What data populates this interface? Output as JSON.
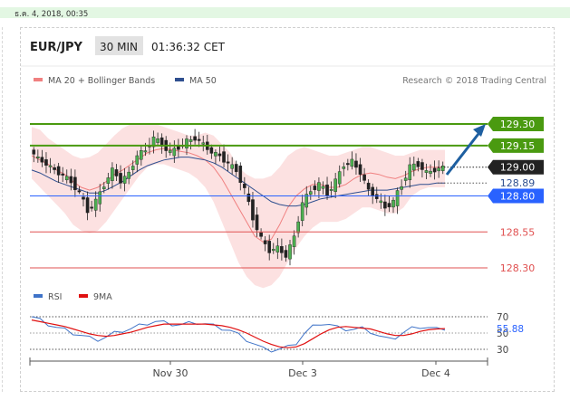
{
  "top_bar": {
    "timestamp": "ธ.ค. 4, 2018, 00:35"
  },
  "header": {
    "symbol": "EUR/JPY",
    "timeframe": "30 MIN",
    "time": "01:36:32 CET"
  },
  "legend": {
    "items": [
      {
        "label": "MA 20 + Bollinger Bands",
        "color": "#f08080"
      },
      {
        "label": "MA 50",
        "color": "#2f4f8f"
      }
    ],
    "credit": "Research © 2018 Trading Central"
  },
  "colors": {
    "resistance": "#4a9a10",
    "support": "#e05050",
    "pivot": "#2962ff",
    "current": "#222222",
    "bollinger_fill": "#f9c9c9",
    "ma50": "#2f4f8f",
    "rsi": "#3f73c8",
    "rsi_ma": "#e01010",
    "arrow": "#1e5fa0"
  },
  "chart_data": [
    {
      "type": "candlestick",
      "title": "EUR/JPY",
      "x_ticks": [
        "Nov 30",
        "Dec 3",
        "Dec 4"
      ],
      "ylim": [
        128.1,
        129.5
      ],
      "levels": [
        {
          "label": "129.30",
          "value": 129.3,
          "kind": "resistance"
        },
        {
          "label": "129.15",
          "value": 129.15,
          "kind": "resistance"
        },
        {
          "label": "129.00",
          "value": 129.0,
          "kind": "current"
        },
        {
          "label": "128.89",
          "value": 128.89,
          "kind": "ma"
        },
        {
          "label": "128.80",
          "value": 128.8,
          "kind": "pivot"
        },
        {
          "label": "128.55",
          "value": 128.55,
          "kind": "support"
        },
        {
          "label": "128.30",
          "value": 128.3,
          "kind": "support"
        }
      ],
      "close_path": [
        129.12,
        129.06,
        129.02,
        128.98,
        128.94,
        128.9,
        128.82,
        128.7,
        128.76,
        128.88,
        128.98,
        128.9,
        128.96,
        129.08,
        129.12,
        129.2,
        129.16,
        129.1,
        129.14,
        129.18,
        129.2,
        129.16,
        129.1,
        129.08,
        129.02,
        128.98,
        128.84,
        128.65,
        128.5,
        128.42,
        128.44,
        128.38,
        128.52,
        128.75,
        128.84,
        128.88,
        128.82,
        128.9,
        129.02,
        129.04,
        128.96,
        128.84,
        128.78,
        128.72,
        128.76,
        128.88,
        129.0,
        129.02,
        128.96,
        128.98,
        129.0
      ],
      "ma20": [
        129.08,
        129.05,
        129.02,
        128.98,
        128.95,
        128.9,
        128.86,
        128.84,
        128.86,
        128.9,
        128.95,
        128.98,
        129.02,
        129.06,
        129.1,
        129.12,
        129.13,
        129.12,
        129.11,
        129.1,
        129.08,
        129.05,
        129.0,
        128.92,
        128.82,
        128.72,
        128.62,
        128.52,
        128.48,
        128.5,
        128.6,
        128.72,
        128.8,
        128.85,
        128.88,
        128.88,
        128.86,
        128.86,
        128.88,
        128.92,
        128.95,
        128.96,
        128.95,
        128.93,
        128.92,
        128.94,
        128.97,
        128.99,
        129.0,
        129.0,
        129.0
      ],
      "bb_upper": [
        129.28,
        129.26,
        129.2,
        129.16,
        129.12,
        129.08,
        129.06,
        129.07,
        129.1,
        129.16,
        129.22,
        129.27,
        129.3,
        129.3,
        129.3,
        129.3,
        129.28,
        129.26,
        129.24,
        129.22,
        129.22,
        129.24,
        129.22,
        129.16,
        129.1,
        129.0,
        128.95,
        128.92,
        128.92,
        128.94,
        129.0,
        129.08,
        129.12,
        129.14,
        129.12,
        129.1,
        129.08,
        129.08,
        129.1,
        129.12,
        129.14,
        129.14,
        129.12,
        129.1,
        129.08,
        129.08,
        129.1,
        129.12,
        129.12,
        129.12,
        129.12
      ],
      "bb_lower": [
        128.92,
        128.86,
        128.8,
        128.74,
        128.68,
        128.6,
        128.56,
        128.54,
        128.56,
        128.62,
        128.7,
        128.78,
        128.86,
        128.94,
        129.0,
        129.02,
        129.02,
        129.0,
        128.98,
        128.96,
        128.92,
        128.86,
        128.76,
        128.62,
        128.48,
        128.34,
        128.24,
        128.18,
        128.16,
        128.18,
        128.24,
        128.34,
        128.44,
        128.52,
        128.58,
        128.62,
        128.62,
        128.62,
        128.64,
        128.68,
        128.72,
        128.72,
        128.7,
        128.68,
        128.68,
        128.72,
        128.8,
        128.84,
        128.86,
        128.86,
        128.86
      ],
      "ma50": [
        128.98,
        128.96,
        128.93,
        128.9,
        128.88,
        128.86,
        128.84,
        128.82,
        128.82,
        128.84,
        128.87,
        128.9,
        128.94,
        128.98,
        129.01,
        129.03,
        129.05,
        129.06,
        129.07,
        129.07,
        129.06,
        129.05,
        129.03,
        129.0,
        128.96,
        128.92,
        128.88,
        128.84,
        128.8,
        128.76,
        128.74,
        128.73,
        128.73,
        128.74,
        128.76,
        128.78,
        128.79,
        128.8,
        128.81,
        128.82,
        128.83,
        128.84,
        128.84,
        128.84,
        128.85,
        128.86,
        128.87,
        128.88,
        128.88,
        128.89,
        128.89
      ]
    },
    {
      "type": "line",
      "title": "RSI",
      "series": [
        {
          "name": "RSI",
          "values": [
            70,
            66,
            61,
            57,
            54,
            50,
            47,
            44,
            42,
            45,
            50,
            53,
            55,
            59,
            62,
            64,
            63,
            61,
            60,
            62,
            63,
            61,
            59,
            56,
            53,
            48,
            42,
            36,
            31,
            29,
            30,
            33,
            38,
            49,
            58,
            62,
            60,
            57,
            55,
            54,
            56,
            52,
            46,
            43,
            45,
            50,
            56,
            58,
            56,
            55,
            55.88
          ]
        },
        {
          "name": "9MA",
          "values": [
            66,
            64,
            62,
            60,
            58,
            55,
            52,
            49,
            47,
            46,
            47,
            49,
            51,
            54,
            57,
            59,
            61,
            61,
            61,
            61,
            61,
            61,
            60,
            59,
            57,
            54,
            50,
            45,
            40,
            36,
            33,
            32,
            33,
            37,
            43,
            49,
            54,
            57,
            58,
            57,
            56,
            55,
            52,
            49,
            47,
            47,
            49,
            52,
            54,
            55,
            55.5
          ]
        }
      ],
      "y_ticks": [
        "70",
        "50",
        "30"
      ],
      "current_value": "55.88",
      "ylim": [
        20,
        80
      ]
    }
  ]
}
